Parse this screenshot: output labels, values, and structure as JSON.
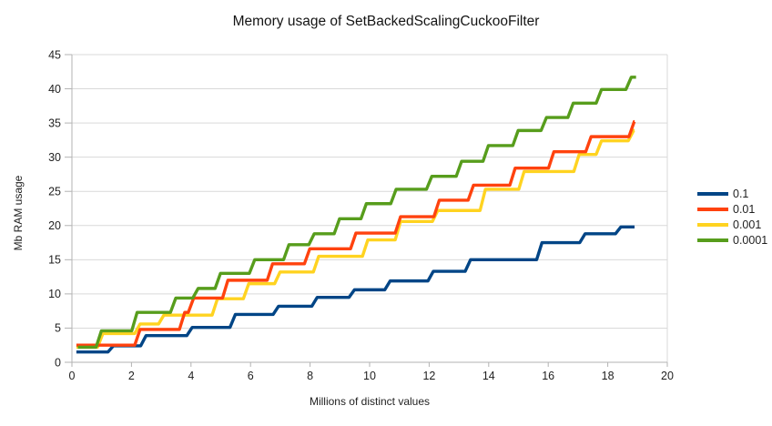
{
  "chart_data": {
    "type": "line",
    "title": "Memory usage of SetBackedScalingCuckooFilter",
    "xlabel": "Millions of distinct values",
    "ylabel": "Mb RAM usage",
    "xlim": [
      0,
      20
    ],
    "ylim": [
      0,
      45
    ],
    "x_ticks": [
      0,
      2,
      4,
      6,
      8,
      10,
      12,
      14,
      16,
      18,
      20
    ],
    "y_ticks": [
      0,
      5,
      10,
      15,
      20,
      25,
      30,
      35,
      40,
      45
    ],
    "grid": true,
    "grid_color": "#d9d9d9",
    "axis_color": "#b3b3b3",
    "text_color": "#1f1f1f",
    "legend_position": "right",
    "line_style": "stepped",
    "series": [
      {
        "name": "0.1",
        "color": "#004586",
        "step_x": [
          0.15,
          1.3,
          2.4,
          3.95,
          5.4,
          6.85,
          8.15,
          9.4,
          10.6,
          12.05,
          13.3,
          15.7,
          17.15,
          18.35
        ],
        "step_y": [
          1.5,
          2.4,
          3.9,
          5.1,
          7.0,
          8.2,
          9.5,
          10.6,
          11.9,
          13.3,
          15.0,
          17.5,
          18.8,
          19.8
        ],
        "end_x": 18.9
      },
      {
        "name": "0.01",
        "color": "#ff420e",
        "step_x": [
          0.15,
          2.2,
          3.7,
          4.0,
          5.15,
          6.65,
          7.9,
          9.45,
          10.95,
          12.25,
          13.4,
          14.8,
          16.1,
          17.35,
          18.8
        ],
        "step_y": [
          2.5,
          4.8,
          7.3,
          9.4,
          12.0,
          14.4,
          16.6,
          18.9,
          21.3,
          23.7,
          25.9,
          28.4,
          30.8,
          33.0,
          35.2
        ],
        "end_x": 18.9
      },
      {
        "name": "0.001",
        "color": "#ffd320",
        "step_x": [
          0.15,
          0.95,
          2.2,
          3.0,
          4.8,
          5.85,
          6.9,
          8.2,
          9.85,
          10.95,
          12.2,
          13.8,
          15.1,
          16.95,
          17.7,
          18.78
        ],
        "step_y": [
          2.2,
          4.2,
          5.6,
          6.9,
          9.3,
          11.5,
          13.2,
          15.5,
          17.9,
          20.6,
          22.2,
          25.3,
          27.9,
          30.4,
          32.4,
          33.9
        ],
        "end_x": 18.9
      },
      {
        "name": "0.0001",
        "color": "#579d1c",
        "step_x": [
          0.2,
          0.9,
          2.1,
          3.4,
          4.15,
          4.9,
          6.05,
          7.2,
          8.05,
          8.9,
          9.8,
          10.8,
          12.0,
          13.0,
          13.9,
          14.9,
          15.85,
          16.75,
          17.7,
          18.7
        ],
        "step_y": [
          2.2,
          4.6,
          7.3,
          9.4,
          10.8,
          13.0,
          15.0,
          17.2,
          18.8,
          21.0,
          23.2,
          25.3,
          27.2,
          29.4,
          31.7,
          33.9,
          35.8,
          37.9,
          39.9,
          41.7
        ],
        "end_x": 18.95
      }
    ]
  }
}
